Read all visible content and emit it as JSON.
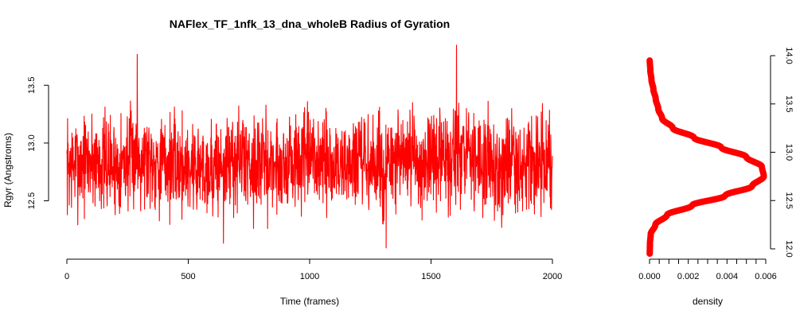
{
  "chart_data": [
    {
      "type": "line",
      "title": "NAFlex_TF_1nfk_13_dna_wholeB Radius of Gyration",
      "xlabel": "Time (frames)",
      "ylabel": "Rgyr (Angstroms)",
      "xlim": [
        0,
        2000
      ],
      "ylim": [
        12.05,
        13.88
      ],
      "x_ticks": [
        "0",
        "500",
        "1000",
        "1500",
        "2000"
      ],
      "y_ticks": [
        "12.5",
        "13.0",
        "13.5"
      ],
      "color": "#ff0000",
      "series": [
        {
          "x": [
            0,
            100,
            200,
            300,
            400,
            500,
            600,
            700,
            800,
            900,
            1000,
            1100,
            1200,
            1300,
            1400,
            1500,
            1600,
            1700,
            1800,
            1900,
            2000
          ],
          "y": [
            12.8,
            12.85,
            12.8,
            12.9,
            12.82,
            12.8,
            12.78,
            12.85,
            12.82,
            12.8,
            12.85,
            12.8,
            12.82,
            12.78,
            12.85,
            12.82,
            12.88,
            12.85,
            12.8,
            12.82,
            12.8
          ]
        }
      ],
      "noise_amplitude": 0.22,
      "extremes": [
        {
          "x": 290,
          "y": 13.77
        },
        {
          "x": 645,
          "y": 12.13
        },
        {
          "x": 1315,
          "y": 12.09
        },
        {
          "x": 1605,
          "y": 13.85
        }
      ]
    },
    {
      "type": "line",
      "xlabel": "density",
      "xlim": [
        0,
        0.006
      ],
      "ylim": [
        11.95,
        14.0
      ],
      "x_ticks": [
        "0.000",
        "0.002",
        "0.004",
        "0.006"
      ],
      "y_ticks": [
        "12.0",
        "12.5",
        "13.0",
        "13.5",
        "14.0"
      ],
      "color": "#ff0000",
      "series": [
        {
          "y": [
            11.95,
            12.05,
            12.15,
            12.25,
            12.35,
            12.45,
            12.55,
            12.65,
            12.75,
            12.85,
            12.95,
            13.05,
            13.15,
            13.25,
            13.35,
            13.45,
            13.55,
            13.65,
            13.75,
            13.85,
            13.95
          ],
          "density": [
            1e-05,
            2e-05,
            6e-05,
            0.0003,
            0.0009,
            0.0022,
            0.0039,
            0.0053,
            0.0059,
            0.0058,
            0.005,
            0.0037,
            0.0023,
            0.0012,
            0.00065,
            0.00045,
            0.00032,
            0.0002,
            0.0001,
            4e-05,
            1e-05
          ]
        }
      ]
    }
  ]
}
